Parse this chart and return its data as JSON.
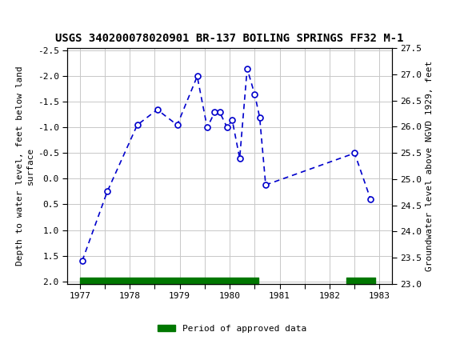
{
  "title": "USGS 340200078020901 BR-137 BOILING SPRINGS FF32 M-1",
  "ylabel_left": "Depth to water level, feet below land\nsurface",
  "ylabel_right": "Groundwater level above NGVD 1929, feet",
  "ylim_left": [
    2.05,
    -2.55
  ],
  "ylim_right": [
    23.0,
    27.5
  ],
  "xlim": [
    1976.75,
    1983.25
  ],
  "yticks_left": [
    2.0,
    1.5,
    1.0,
    0.5,
    0.0,
    -0.5,
    -1.0,
    -1.5,
    -2.0,
    -2.5
  ],
  "yticks_right": [
    23.0,
    23.5,
    24.0,
    24.5,
    25.0,
    25.5,
    26.0,
    26.5,
    27.0,
    27.5
  ],
  "xticks": [
    1977,
    1977.5,
    1978,
    1978.5,
    1979,
    1979.5,
    1980,
    1980.5,
    1981,
    1981.5,
    1982,
    1982.5,
    1983
  ],
  "xtick_labels": [
    "1977",
    "1977",
    "1978",
    "1978",
    "1979",
    "1979",
    "1980",
    "1980",
    "1981",
    "1981",
    "1982",
    "1982",
    "1983"
  ],
  "data_x": [
    1977.05,
    1977.55,
    1978.15,
    1978.55,
    1978.95,
    1979.35,
    1979.55,
    1979.7,
    1979.8,
    1979.95,
    1980.05,
    1980.2,
    1980.35,
    1980.5,
    1980.6,
    1980.72,
    1982.5,
    1982.82
  ],
  "data_y_left": [
    1.6,
    0.25,
    -1.05,
    -1.35,
    -1.05,
    -2.0,
    -1.0,
    -1.3,
    -1.3,
    -1.0,
    -1.15,
    -0.4,
    -2.15,
    -1.65,
    -1.2,
    0.12,
    -0.5,
    0.4
  ],
  "line_color": "#0000cc",
  "marker_face": "#ffffff",
  "line_width": 1.2,
  "marker_size": 5,
  "grid_color": "#c8c8c8",
  "background_color": "#ffffff",
  "header_bg_color": "#1e6e34",
  "header_text_color": "#ffffff",
  "approved_bars": [
    {
      "x_start": 1977.0,
      "x_end": 1980.58
    },
    {
      "x_start": 1982.33,
      "x_end": 1982.92
    }
  ],
  "approved_bar_color": "#007700",
  "legend_label": "Period of approved data",
  "fig_width": 5.8,
  "fig_height": 4.3,
  "dpi": 100
}
